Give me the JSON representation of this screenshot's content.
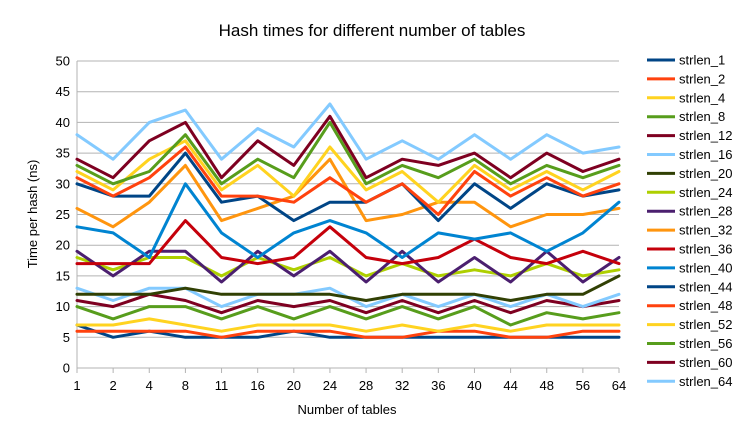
{
  "chart_data": {
    "type": "line",
    "title": "Hash times for different number of tables",
    "xlabel": "Number of tables",
    "ylabel": "Time per hash (ns)",
    "categories": [
      "1",
      "2",
      "4",
      "8",
      "11",
      "16",
      "20",
      "24",
      "28",
      "32",
      "36",
      "40",
      "44",
      "48",
      "56",
      "64"
    ],
    "ylim": [
      0,
      50
    ],
    "yticks": [
      0,
      5,
      10,
      15,
      20,
      25,
      30,
      35,
      40,
      45,
      50
    ],
    "grid": true,
    "legend_position": "right",
    "series": [
      {
        "name": "strlen_1",
        "color": "#004586",
        "values": [
          7,
          5,
          6,
          5,
          5,
          5,
          6,
          5,
          5,
          5,
          5,
          5,
          5,
          5,
          5,
          5
        ]
      },
      {
        "name": "strlen_2",
        "color": "#ff420e",
        "values": [
          6,
          6,
          6,
          6,
          5,
          6,
          6,
          6,
          5,
          5,
          6,
          6,
          5,
          5,
          6,
          6
        ]
      },
      {
        "name": "strlen_4",
        "color": "#ffd320",
        "values": [
          7,
          7,
          8,
          7,
          6,
          7,
          7,
          7,
          6,
          7,
          6,
          7,
          6,
          7,
          7,
          7
        ]
      },
      {
        "name": "strlen_8",
        "color": "#579d1c",
        "values": [
          10,
          8,
          10,
          10,
          8,
          10,
          8,
          10,
          8,
          10,
          8,
          10,
          7,
          9,
          8,
          9
        ]
      },
      {
        "name": "strlen_12",
        "color": "#7e0021",
        "values": [
          11,
          10,
          12,
          11,
          9,
          11,
          10,
          11,
          9,
          11,
          9,
          11,
          9,
          11,
          10,
          11
        ]
      },
      {
        "name": "strlen_16",
        "color": "#83caff",
        "values": [
          13,
          11,
          13,
          13,
          10,
          12,
          12,
          13,
          10,
          12,
          10,
          12,
          10,
          12,
          10,
          12
        ]
      },
      {
        "name": "strlen_20",
        "color": "#314004",
        "values": [
          12,
          12,
          12,
          13,
          12,
          12,
          12,
          12,
          11,
          12,
          12,
          12,
          11,
          12,
          12,
          15
        ]
      },
      {
        "name": "strlen_24",
        "color": "#aecf00",
        "values": [
          18,
          16,
          18,
          18,
          15,
          18,
          16,
          18,
          15,
          17,
          15,
          16,
          15,
          17,
          15,
          16
        ]
      },
      {
        "name": "strlen_28",
        "color": "#4b1f6f",
        "values": [
          19,
          15,
          19,
          19,
          14,
          19,
          15,
          19,
          14,
          19,
          14,
          18,
          14,
          19,
          14,
          18
        ]
      },
      {
        "name": "strlen_32",
        "color": "#ff950e",
        "values": [
          26,
          23,
          27,
          33,
          24,
          26,
          28,
          34,
          24,
          25,
          27,
          27,
          23,
          25,
          25,
          26
        ]
      },
      {
        "name": "strlen_36",
        "color": "#c5000b",
        "values": [
          17,
          17,
          17,
          24,
          18,
          17,
          18,
          23,
          18,
          17,
          18,
          21,
          18,
          17,
          19,
          17
        ]
      },
      {
        "name": "strlen_40",
        "color": "#0084d1",
        "values": [
          23,
          22,
          18,
          30,
          22,
          18,
          22,
          24,
          22,
          18,
          22,
          21,
          22,
          19,
          22,
          27
        ]
      },
      {
        "name": "strlen_44",
        "color": "#004586",
        "values": [
          30,
          28,
          28,
          35,
          27,
          28,
          24,
          27,
          27,
          30,
          24,
          30,
          26,
          30,
          28,
          29
        ]
      },
      {
        "name": "strlen_48",
        "color": "#ff420e",
        "values": [
          31,
          28,
          31,
          36,
          28,
          28,
          27,
          31,
          27,
          30,
          25,
          32,
          28,
          31,
          28,
          30
        ]
      },
      {
        "name": "strlen_52",
        "color": "#ffd320",
        "values": [
          32,
          29,
          34,
          37,
          29,
          33,
          28,
          36,
          29,
          32,
          27,
          33,
          29,
          32,
          29,
          32
        ]
      },
      {
        "name": "strlen_56",
        "color": "#579d1c",
        "values": [
          33,
          30,
          32,
          38,
          30,
          34,
          31,
          40,
          30,
          33,
          31,
          34,
          30,
          33,
          31,
          33
        ]
      },
      {
        "name": "strlen_60",
        "color": "#7e0021",
        "values": [
          34,
          31,
          37,
          40,
          31,
          37,
          33,
          41,
          31,
          34,
          33,
          35,
          31,
          35,
          32,
          34
        ]
      },
      {
        "name": "strlen_64",
        "color": "#83caff",
        "values": [
          38,
          34,
          40,
          42,
          34,
          39,
          36,
          43,
          34,
          37,
          34,
          38,
          34,
          38,
          35,
          36
        ]
      }
    ]
  }
}
